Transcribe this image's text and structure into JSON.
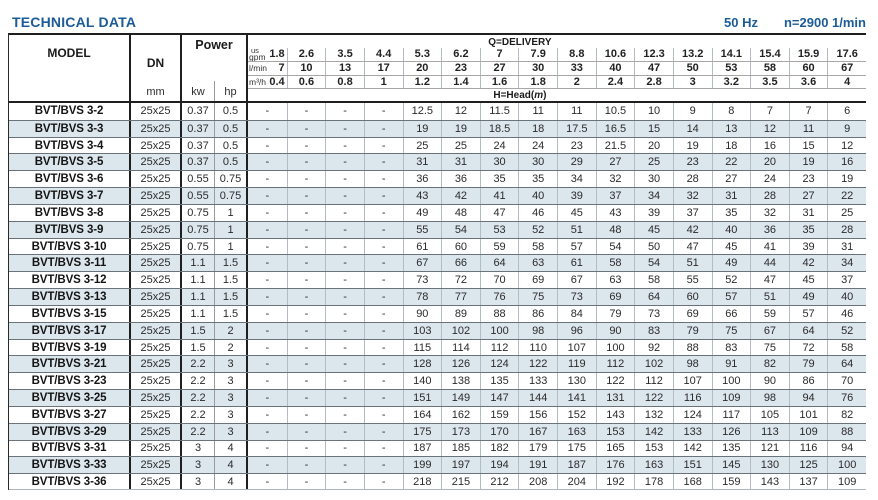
{
  "header": {
    "title": "TECHNICAL DATA",
    "frequency": "50 Hz",
    "speed": "n=2900 1/min"
  },
  "colors": {
    "accent": "#1b5b97",
    "row_stripe": "#dce6ed"
  },
  "table": {
    "columns": {
      "model": "MODEL",
      "dn": "DN",
      "dn_unit": "mm",
      "power": "Power",
      "kw": "kw",
      "hp": "hp"
    },
    "delivery": {
      "label": "Q=DELIVERY",
      "head_prefix": "H=Head(",
      "head_m": "m",
      "head_suffix": ")",
      "units": [
        {
          "top": "us",
          "label": "gpm"
        },
        {
          "label": "l/min"
        },
        {
          "label": "m³/h"
        }
      ],
      "gpm": [
        "1.8",
        "2.6",
        "3.5",
        "4.4",
        "5.3",
        "6.2",
        "7",
        "7.9",
        "8.8",
        "10.6",
        "12.3",
        "13.2",
        "14.1",
        "15.4",
        "15.9",
        "17.6"
      ],
      "lmin": [
        "7",
        "10",
        "13",
        "17",
        "20",
        "23",
        "27",
        "30",
        "33",
        "40",
        "47",
        "50",
        "53",
        "58",
        "60",
        "67"
      ],
      "m3h": [
        "0.4",
        "0.6",
        "0.8",
        "1",
        "1.2",
        "1.4",
        "1.6",
        "1.8",
        "2",
        "2.4",
        "2.8",
        "3",
        "3.2",
        "3.5",
        "3.6",
        "4"
      ]
    },
    "rows": [
      {
        "model": "BVT/BVS 3-2",
        "dn": "25x25",
        "kw": "0.37",
        "hp": "0.5",
        "head": [
          "-",
          "-",
          "-",
          "-",
          "12.5",
          "12",
          "11.5",
          "11",
          "11",
          "10.5",
          "10",
          "9",
          "8",
          "7",
          "7",
          "6"
        ]
      },
      {
        "model": "BVT/BVS 3-3",
        "dn": "25x25",
        "kw": "0.37",
        "hp": "0.5",
        "head": [
          "-",
          "-",
          "-",
          "-",
          "19",
          "19",
          "18.5",
          "18",
          "17.5",
          "16.5",
          "15",
          "14",
          "13",
          "12",
          "11",
          "9"
        ]
      },
      {
        "model": "BVT/BVS 3-4",
        "dn": "25x25",
        "kw": "0.37",
        "hp": "0.5",
        "head": [
          "-",
          "-",
          "-",
          "-",
          "25",
          "25",
          "24",
          "24",
          "23",
          "21.5",
          "20",
          "19",
          "18",
          "16",
          "15",
          "12"
        ]
      },
      {
        "model": "BVT/BVS 3-5",
        "dn": "25x25",
        "kw": "0.37",
        "hp": "0.5",
        "head": [
          "-",
          "-",
          "-",
          "-",
          "31",
          "31",
          "30",
          "30",
          "29",
          "27",
          "25",
          "23",
          "22",
          "20",
          "19",
          "16"
        ]
      },
      {
        "model": "BVT/BVS 3-6",
        "dn": "25x25",
        "kw": "0.55",
        "hp": "0.75",
        "head": [
          "-",
          "-",
          "-",
          "-",
          "36",
          "36",
          "35",
          "35",
          "34",
          "32",
          "30",
          "28",
          "27",
          "24",
          "23",
          "19"
        ]
      },
      {
        "model": "BVT/BVS 3-7",
        "dn": "25x25",
        "kw": "0.55",
        "hp": "0.75",
        "head": [
          "-",
          "-",
          "-",
          "-",
          "43",
          "42",
          "41",
          "40",
          "39",
          "37",
          "34",
          "32",
          "31",
          "28",
          "27",
          "22"
        ]
      },
      {
        "model": "BVT/BVS 3-8",
        "dn": "25x25",
        "kw": "0.75",
        "hp": "1",
        "head": [
          "-",
          "-",
          "-",
          "-",
          "49",
          "48",
          "47",
          "46",
          "45",
          "43",
          "39",
          "37",
          "35",
          "32",
          "31",
          "25"
        ]
      },
      {
        "model": "BVT/BVS 3-9",
        "dn": "25x25",
        "kw": "0.75",
        "hp": "1",
        "head": [
          "-",
          "-",
          "-",
          "-",
          "55",
          "54",
          "53",
          "52",
          "51",
          "48",
          "45",
          "42",
          "40",
          "36",
          "35",
          "28"
        ]
      },
      {
        "model": "BVT/BVS 3-10",
        "dn": "25x25",
        "kw": "0.75",
        "hp": "1",
        "head": [
          "-",
          "-",
          "-",
          "-",
          "61",
          "60",
          "59",
          "58",
          "57",
          "54",
          "50",
          "47",
          "45",
          "41",
          "39",
          "31"
        ]
      },
      {
        "model": "BVT/BVS 3-11",
        "dn": "25x25",
        "kw": "1.1",
        "hp": "1.5",
        "head": [
          "-",
          "-",
          "-",
          "-",
          "67",
          "66",
          "64",
          "63",
          "61",
          "58",
          "54",
          "51",
          "49",
          "44",
          "42",
          "34"
        ]
      },
      {
        "model": "BVT/BVS 3-12",
        "dn": "25x25",
        "kw": "1.1",
        "hp": "1.5",
        "head": [
          "-",
          "-",
          "-",
          "-",
          "73",
          "72",
          "70",
          "69",
          "67",
          "63",
          "58",
          "55",
          "52",
          "47",
          "45",
          "37"
        ]
      },
      {
        "model": "BVT/BVS 3-13",
        "dn": "25x25",
        "kw": "1.1",
        "hp": "1.5",
        "head": [
          "-",
          "-",
          "-",
          "-",
          "78",
          "77",
          "76",
          "75",
          "73",
          "69",
          "64",
          "60",
          "57",
          "51",
          "49",
          "40"
        ]
      },
      {
        "model": "BVT/BVS 3-15",
        "dn": "25x25",
        "kw": "1.1",
        "hp": "1.5",
        "head": [
          "-",
          "-",
          "-",
          "-",
          "90",
          "89",
          "88",
          "86",
          "84",
          "79",
          "73",
          "69",
          "66",
          "59",
          "57",
          "46"
        ]
      },
      {
        "model": "BVT/BVS 3-17",
        "dn": "25x25",
        "kw": "1.5",
        "hp": "2",
        "head": [
          "-",
          "-",
          "-",
          "-",
          "103",
          "102",
          "100",
          "98",
          "96",
          "90",
          "83",
          "79",
          "75",
          "67",
          "64",
          "52"
        ]
      },
      {
        "model": "BVT/BVS 3-19",
        "dn": "25x25",
        "kw": "1.5",
        "hp": "2",
        "head": [
          "-",
          "-",
          "-",
          "-",
          "115",
          "114",
          "112",
          "110",
          "107",
          "100",
          "92",
          "88",
          "83",
          "75",
          "72",
          "58"
        ]
      },
      {
        "model": "BVT/BVS 3-21",
        "dn": "25x25",
        "kw": "2.2",
        "hp": "3",
        "head": [
          "-",
          "-",
          "-",
          "-",
          "128",
          "126",
          "124",
          "122",
          "119",
          "112",
          "102",
          "98",
          "91",
          "82",
          "79",
          "64"
        ]
      },
      {
        "model": "BVT/BVS 3-23",
        "dn": "25x25",
        "kw": "2.2",
        "hp": "3",
        "head": [
          "-",
          "-",
          "-",
          "-",
          "140",
          "138",
          "135",
          "133",
          "130",
          "122",
          "112",
          "107",
          "100",
          "90",
          "86",
          "70"
        ]
      },
      {
        "model": "BVT/BVS 3-25",
        "dn": "25x25",
        "kw": "2.2",
        "hp": "3",
        "head": [
          "-",
          "-",
          "-",
          "-",
          "151",
          "149",
          "147",
          "144",
          "141",
          "131",
          "122",
          "116",
          "109",
          "98",
          "94",
          "76"
        ]
      },
      {
        "model": "BVT/BVS 3-27",
        "dn": "25x25",
        "kw": "2.2",
        "hp": "3",
        "head": [
          "-",
          "-",
          "-",
          "-",
          "164",
          "162",
          "159",
          "156",
          "152",
          "143",
          "132",
          "124",
          "117",
          "105",
          "101",
          "82"
        ]
      },
      {
        "model": "BVT/BVS 3-29",
        "dn": "25x25",
        "kw": "2.2",
        "hp": "3",
        "head": [
          "-",
          "-",
          "-",
          "-",
          "175",
          "173",
          "170",
          "167",
          "163",
          "153",
          "142",
          "133",
          "126",
          "113",
          "109",
          "88"
        ]
      },
      {
        "model": "BVT/BVS 3-31",
        "dn": "25x25",
        "kw": "3",
        "hp": "4",
        "head": [
          "-",
          "-",
          "-",
          "-",
          "187",
          "185",
          "182",
          "179",
          "175",
          "165",
          "153",
          "142",
          "135",
          "121",
          "116",
          "94"
        ]
      },
      {
        "model": "BVT/BVS 3-33",
        "dn": "25x25",
        "kw": "3",
        "hp": "4",
        "head": [
          "-",
          "-",
          "-",
          "-",
          "199",
          "197",
          "194",
          "191",
          "187",
          "176",
          "163",
          "151",
          "145",
          "130",
          "125",
          "100"
        ]
      },
      {
        "model": "BVT/BVS 3-36",
        "dn": "25x25",
        "kw": "3",
        "hp": "4",
        "head": [
          "-",
          "-",
          "-",
          "-",
          "218",
          "215",
          "212",
          "208",
          "204",
          "192",
          "178",
          "168",
          "159",
          "143",
          "137",
          "109"
        ]
      }
    ]
  }
}
